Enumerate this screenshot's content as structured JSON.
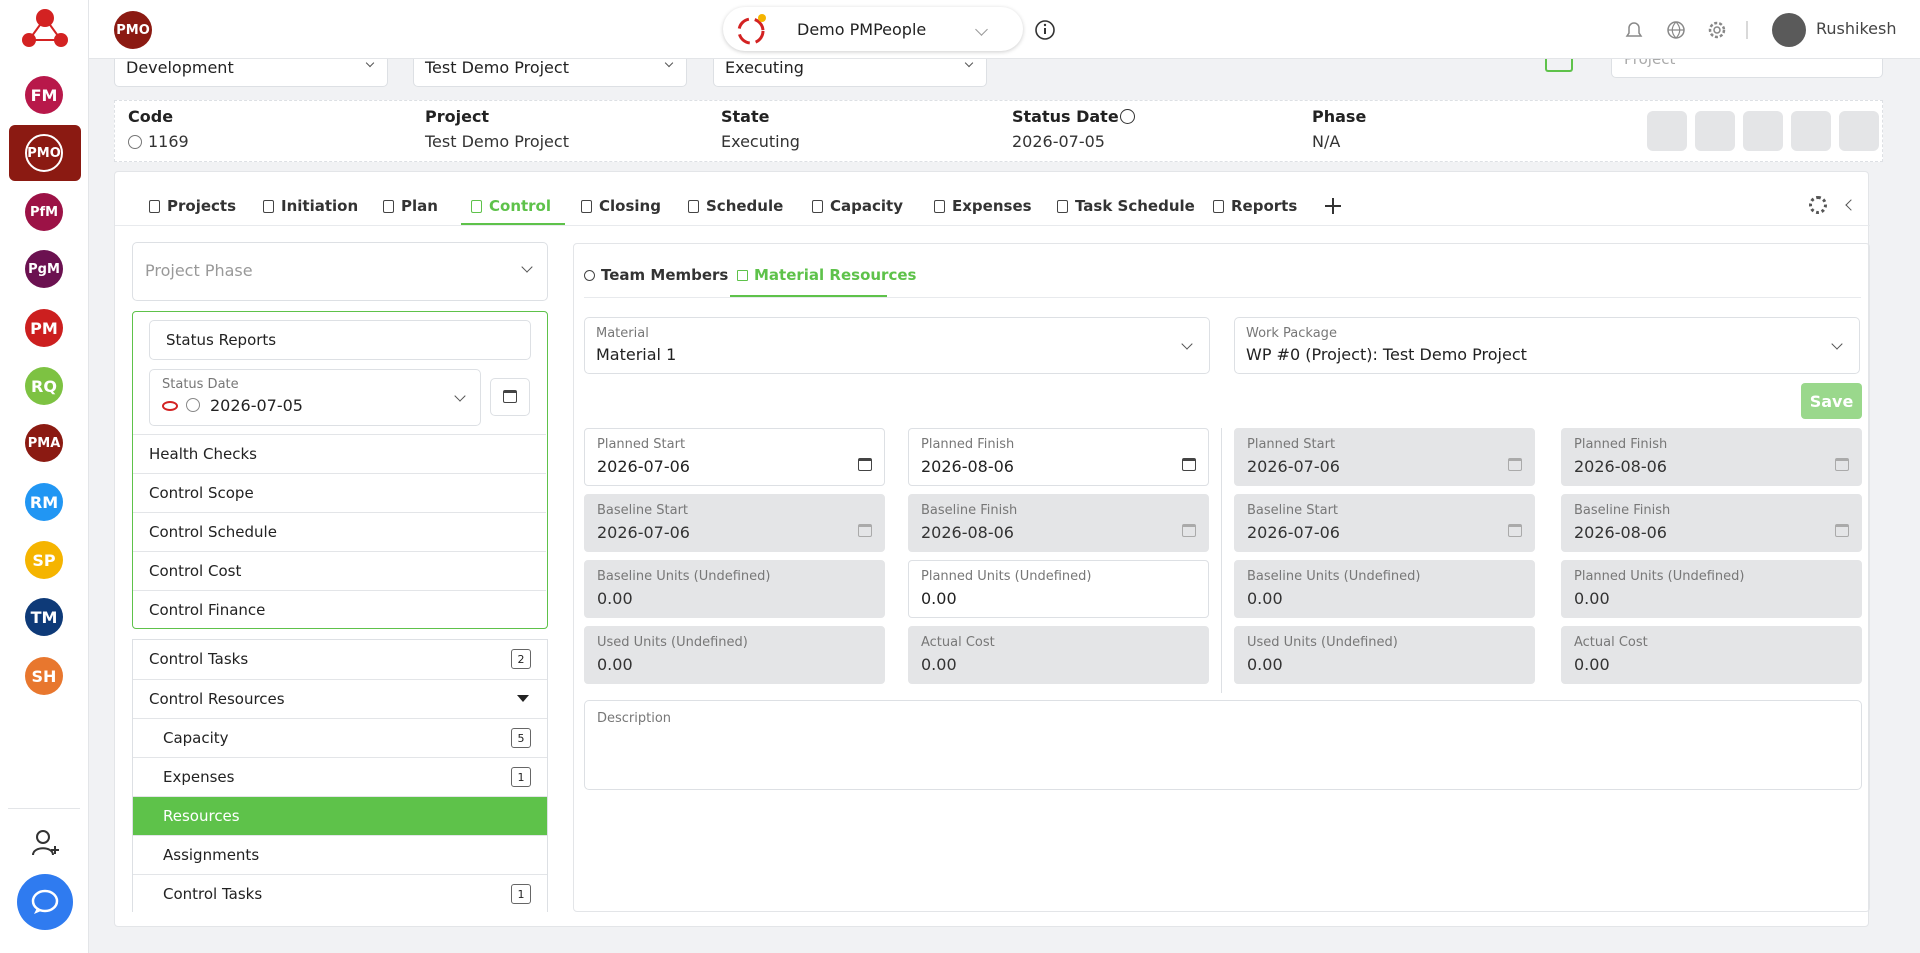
{
  "sidebar": {
    "apps": [
      {
        "label": "FM",
        "color": "#b8184a"
      },
      {
        "label": "PMO",
        "color": "#8b1a12"
      },
      {
        "label": "PfM",
        "color": "#9c1246"
      },
      {
        "label": "PgM",
        "color": "#6b1150"
      },
      {
        "label": "PM",
        "color": "#cc1f1f"
      },
      {
        "label": "RQ",
        "color": "#7dc242"
      },
      {
        "label": "PMA",
        "color": "#8b1a12"
      },
      {
        "label": "RM",
        "color": "#2196f3"
      },
      {
        "label": "SP",
        "color": "#f5b400"
      },
      {
        "label": "TM",
        "color": "#0e3a78"
      },
      {
        "label": "SH",
        "color": "#e8772e"
      }
    ],
    "active": 1
  },
  "topbar": {
    "badge": "PMO",
    "workspace": "Demo PMPeople",
    "user": "Rushikesh"
  },
  "filters": {
    "selects": [
      "Development",
      "Test Demo Project",
      "Executing"
    ],
    "search_placeholder": "Project"
  },
  "summary": {
    "fields": [
      {
        "label": "Code",
        "value": "1169"
      },
      {
        "label": "Project",
        "value": "Test Demo Project"
      },
      {
        "label": "State",
        "value": "Executing"
      },
      {
        "label": "Status Date",
        "value": "2026-07-05"
      },
      {
        "label": "Phase",
        "value": "N/A"
      }
    ]
  },
  "tabs": {
    "items": [
      "Projects",
      "Initiation",
      "Plan",
      "Control",
      "Closing",
      "Schedule",
      "Capacity",
      "Expenses",
      "Task Schedule",
      "Reports"
    ],
    "active": 3
  },
  "left_panel": {
    "phase_placeholder": "Project Phase",
    "status_reports": "Status Reports",
    "status_date": {
      "label": "Status Date",
      "value": "2026-07-05"
    },
    "items": [
      "Health Checks",
      "Control Scope",
      "Control Schedule",
      "Control Cost",
      "Control Finance"
    ],
    "tree": [
      {
        "label": "Control Tasks",
        "badge": 2,
        "level": 0
      },
      {
        "label": "Control Resources",
        "level": 0
      },
      {
        "label": "Capacity",
        "badge": 5,
        "level": 1
      },
      {
        "label": "Expenses",
        "badge": 1,
        "level": 1
      },
      {
        "label": "Resources",
        "level": 1,
        "active": true
      },
      {
        "label": "Assignments",
        "level": 1
      },
      {
        "label": "Control Tasks",
        "badge": 1,
        "level": 1
      }
    ]
  },
  "right_panel": {
    "subtabs": [
      "Team Members",
      "Material Resources"
    ],
    "active_subtab": 1,
    "material": {
      "label": "Material",
      "value": "Material 1"
    },
    "work_package": {
      "label": "Work Package",
      "value": "WP #0 (Project): Test Demo Project"
    },
    "save": "Save",
    "groups": [
      [
        {
          "label": "Planned Start",
          "value": "2026-07-06",
          "calendar": true
        },
        {
          "label": "Planned Finish",
          "value": "2026-08-06",
          "calendar": true
        },
        {
          "label": "Baseline Start",
          "value": "2026-07-06",
          "calendar": true,
          "disabled": true
        },
        {
          "label": "Baseline Finish",
          "value": "2026-08-06",
          "calendar": true,
          "disabled": true
        },
        {
          "label": "Baseline Units (Undefined)",
          "value": "0.00",
          "disabled": true
        },
        {
          "label": "Planned Units (Undefined)",
          "value": "0.00"
        },
        {
          "label": "Used Units (Undefined)",
          "value": "0.00",
          "disabled": true
        },
        {
          "label": "Actual Cost",
          "value": "0.00",
          "disabled": true
        }
      ],
      [
        {
          "label": "Planned Start",
          "value": "2026-07-06",
          "calendar": true,
          "disabled": true
        },
        {
          "label": "Planned Finish",
          "value": "2026-08-06",
          "calendar": true,
          "disabled": true
        },
        {
          "label": "Baseline Start",
          "value": "2026-07-06",
          "calendar": true,
          "disabled": true
        },
        {
          "label": "Baseline Finish",
          "value": "2026-08-06",
          "calendar": true,
          "disabled": true
        },
        {
          "label": "Baseline Units (Undefined)",
          "value": "0.00",
          "disabled": true
        },
        {
          "label": "Planned Units (Undefined)",
          "value": "0.00",
          "disabled": true
        },
        {
          "label": "Used Units (Undefined)",
          "value": "0.00",
          "disabled": true
        },
        {
          "label": "Actual Cost",
          "value": "0.00",
          "disabled": true
        }
      ]
    ],
    "description_label": "Description"
  }
}
